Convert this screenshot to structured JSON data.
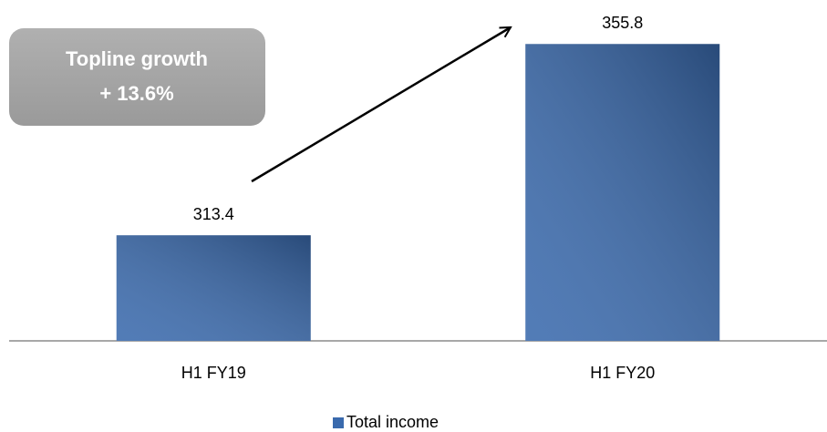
{
  "chart_data": {
    "type": "bar",
    "categories": [
      "H1 FY19",
      "H1 FY20"
    ],
    "series": [
      {
        "name": "Total income",
        "color": "#3a6aad",
        "values": [
          313.4,
          355.8
        ]
      }
    ],
    "ylim": [
      290,
      360
    ],
    "annotations": [
      "Topline growth",
      "+ 13.6%"
    ],
    "legend": "bottom"
  }
}
